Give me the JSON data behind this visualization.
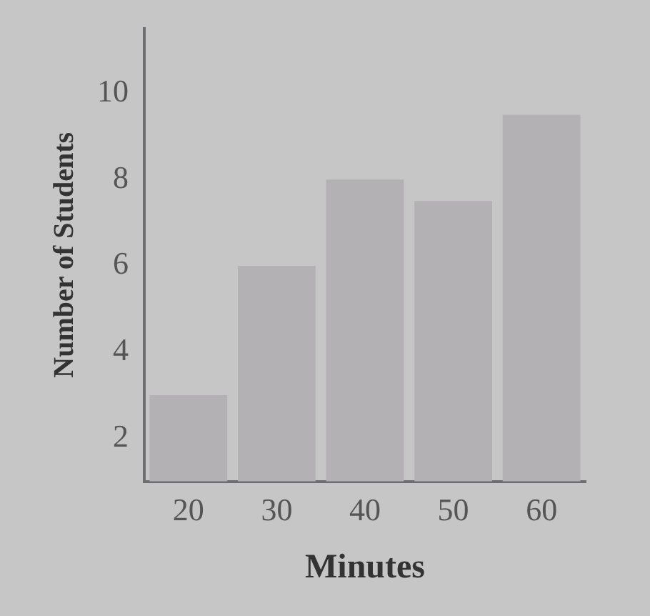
{
  "chart_data": {
    "type": "bar",
    "xlabel": "Minutes",
    "ylabel": "Number of Students",
    "categories": [
      "20",
      "30",
      "40",
      "50",
      "60"
    ],
    "values": [
      3,
      6,
      8,
      7.5,
      9.5
    ],
    "color": "#b4b1b4",
    "ylim": [
      1,
      11.5
    ],
    "yticks": [
      2,
      4,
      6,
      8,
      10
    ],
    "grid": false,
    "legend": false
  }
}
